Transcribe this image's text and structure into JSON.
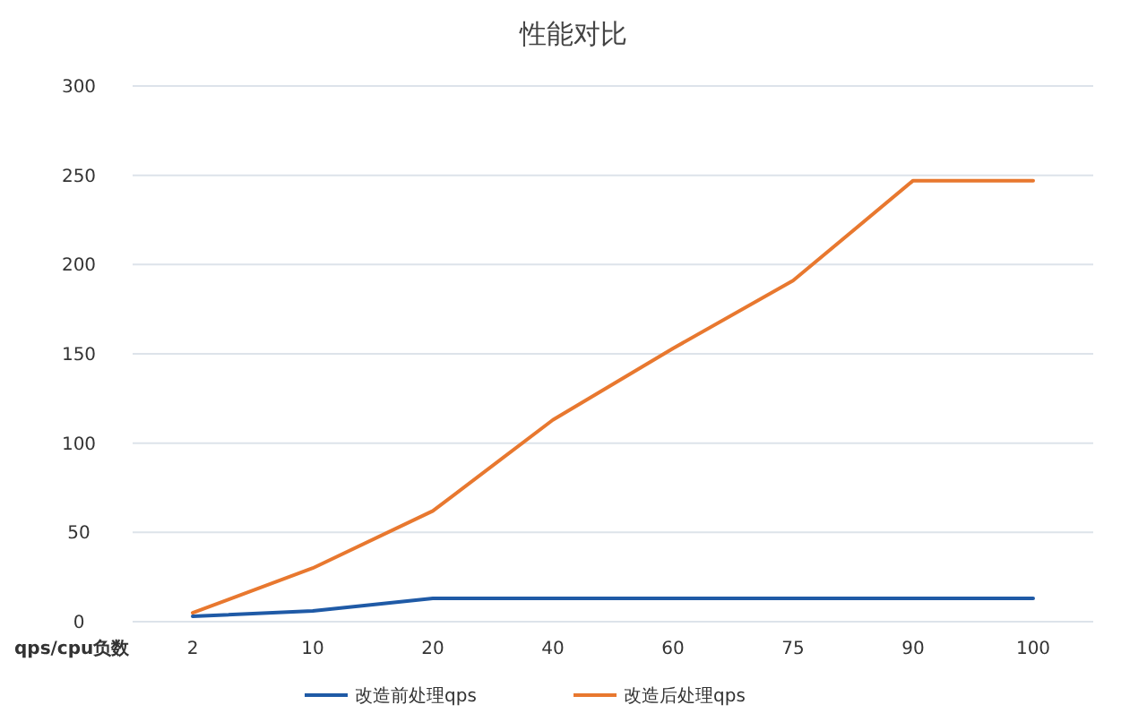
{
  "chart_data": {
    "type": "line",
    "title": "性能对比",
    "xlabel": "qps/cpu负数",
    "categories": [
      "2",
      "10",
      "20",
      "40",
      "60",
      "75",
      "90",
      "100"
    ],
    "series": [
      {
        "name": "改造前处理qps",
        "color": "#1f5aa6",
        "values": [
          3,
          6,
          13,
          13,
          13,
          13,
          13,
          13
        ]
      },
      {
        "name": "改造后处理qps",
        "color": "#e8782f",
        "values": [
          5,
          30,
          62,
          113,
          153,
          191,
          247,
          247
        ]
      }
    ],
    "ylim": [
      0,
      300
    ],
    "yticks": [
      0,
      50,
      100,
      150,
      200,
      250,
      300
    ],
    "grid": "y",
    "legend": "bottom",
    "marker": "none",
    "line_style": "solid"
  }
}
